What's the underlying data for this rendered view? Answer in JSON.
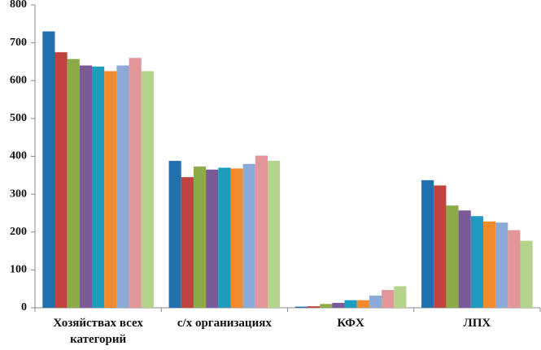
{
  "chart_data": {
    "type": "bar",
    "categories": [
      "Хозяйствах всех категорий",
      "с/х организациях",
      "КФХ",
      "ЛПХ"
    ],
    "series": [
      {
        "color": "#2270ae",
        "values": [
          730,
          388,
          3,
          337
        ]
      },
      {
        "color": "#c0433f",
        "values": [
          675,
          345,
          4,
          323
        ]
      },
      {
        "color": "#8caa48",
        "values": [
          657,
          373,
          10,
          270
        ]
      },
      {
        "color": "#7a5a98",
        "values": [
          640,
          365,
          13,
          257
        ]
      },
      {
        "color": "#1e9bbd",
        "values": [
          637,
          370,
          20,
          242
        ]
      },
      {
        "color": "#f28a2e",
        "values": [
          625,
          368,
          20,
          228
        ]
      },
      {
        "color": "#8daad6",
        "values": [
          640,
          380,
          32,
          225
        ]
      },
      {
        "color": "#e3969a",
        "values": [
          660,
          402,
          47,
          205
        ]
      },
      {
        "color": "#b4d38c",
        "values": [
          625,
          388,
          57,
          177
        ]
      }
    ],
    "ylim": [
      0,
      800
    ],
    "yticks": [
      0,
      100,
      200,
      300,
      400,
      500,
      600,
      700,
      800
    ],
    "grid": false
  }
}
